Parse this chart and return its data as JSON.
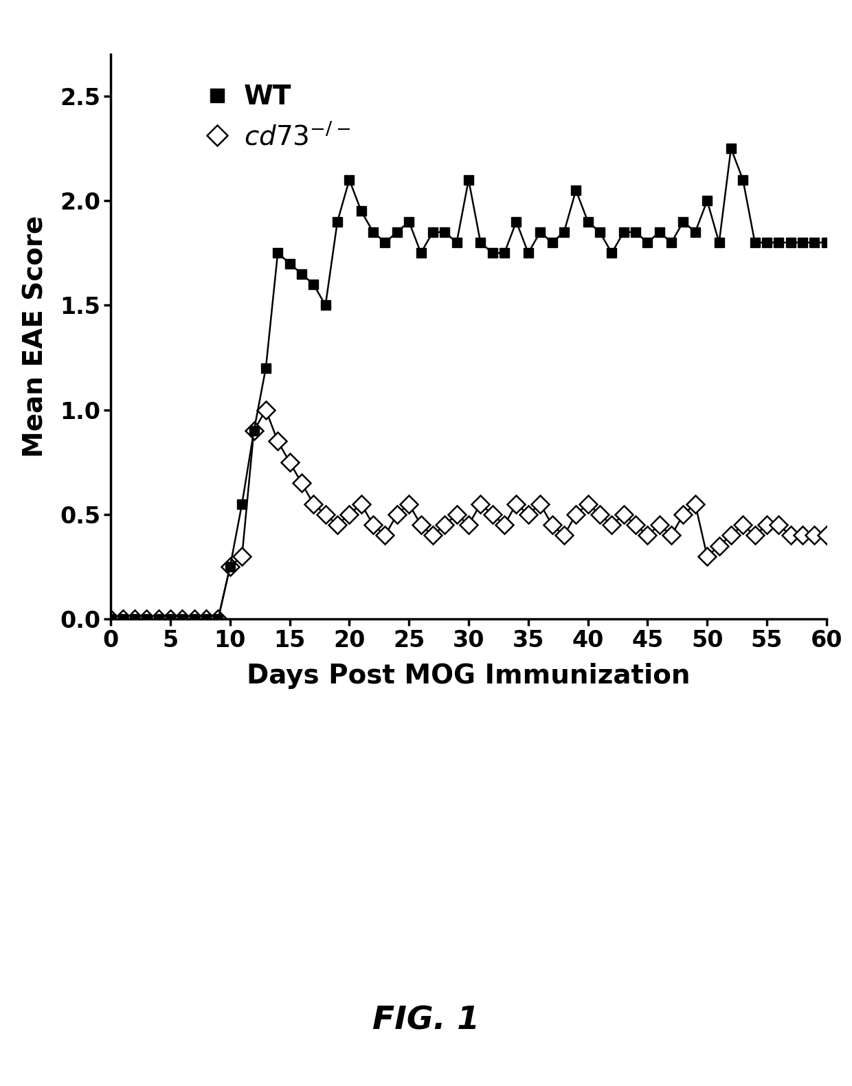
{
  "wt_x": [
    0,
    1,
    2,
    3,
    4,
    5,
    6,
    7,
    8,
    9,
    10,
    11,
    12,
    13,
    14,
    15,
    16,
    17,
    18,
    19,
    20,
    21,
    22,
    23,
    24,
    25,
    26,
    27,
    28,
    29,
    30,
    31,
    32,
    33,
    34,
    35,
    36,
    37,
    38,
    39,
    40,
    41,
    42,
    43,
    44,
    45,
    46,
    47,
    48,
    49,
    50,
    51,
    52,
    53,
    54,
    55,
    56,
    57,
    58,
    59,
    60
  ],
  "wt_y": [
    0,
    0,
    0,
    0,
    0,
    0,
    0,
    0,
    0,
    0,
    0.25,
    0.55,
    0.9,
    1.2,
    1.75,
    1.7,
    1.65,
    1.6,
    1.5,
    1.9,
    2.1,
    1.95,
    1.85,
    1.8,
    1.85,
    1.9,
    1.75,
    1.85,
    1.85,
    1.8,
    2.1,
    1.8,
    1.75,
    1.75,
    1.9,
    1.75,
    1.85,
    1.8,
    1.85,
    2.05,
    1.9,
    1.85,
    1.75,
    1.85,
    1.85,
    1.8,
    1.85,
    1.8,
    1.9,
    1.85,
    2.0,
    1.8,
    2.25,
    2.1,
    1.8,
    1.8,
    1.8,
    1.8,
    1.8,
    1.8,
    1.8
  ],
  "cd73_x": [
    0,
    1,
    2,
    3,
    4,
    5,
    6,
    7,
    8,
    9,
    10,
    11,
    12,
    13,
    14,
    15,
    16,
    17,
    18,
    19,
    20,
    21,
    22,
    23,
    24,
    25,
    26,
    27,
    28,
    29,
    30,
    31,
    32,
    33,
    34,
    35,
    36,
    37,
    38,
    39,
    40,
    41,
    42,
    43,
    44,
    45,
    46,
    47,
    48,
    49,
    50,
    51,
    52,
    53,
    54,
    55,
    56,
    57,
    58,
    59,
    60
  ],
  "cd73_y": [
    0,
    0,
    0,
    0,
    0,
    0,
    0,
    0,
    0,
    0,
    0.25,
    0.3,
    0.9,
    1.0,
    0.85,
    0.75,
    0.65,
    0.55,
    0.5,
    0.45,
    0.5,
    0.55,
    0.45,
    0.4,
    0.5,
    0.55,
    0.45,
    0.4,
    0.45,
    0.5,
    0.45,
    0.55,
    0.5,
    0.45,
    0.55,
    0.5,
    0.55,
    0.45,
    0.4,
    0.5,
    0.55,
    0.5,
    0.45,
    0.5,
    0.45,
    0.4,
    0.45,
    0.4,
    0.5,
    0.55,
    0.3,
    0.35,
    0.4,
    0.45,
    0.4,
    0.45,
    0.45,
    0.4,
    0.4,
    0.4,
    0.4
  ],
  "xlabel": "Days Post MOG Immunization",
  "ylabel": "Mean EAE Score",
  "xlim": [
    0,
    60
  ],
  "ylim": [
    0,
    2.7
  ],
  "xticks": [
    0,
    5,
    10,
    15,
    20,
    25,
    30,
    35,
    40,
    45,
    50,
    55,
    60
  ],
  "yticks": [
    0,
    0.5,
    1.0,
    1.5,
    2.0,
    2.5
  ],
  "fig_label": "FIG. 1",
  "background_color": "#ffffff",
  "wt_color": "#000000",
  "cd73_color": "#000000",
  "wt_label": "WT",
  "cd73_label": "cd73"
}
